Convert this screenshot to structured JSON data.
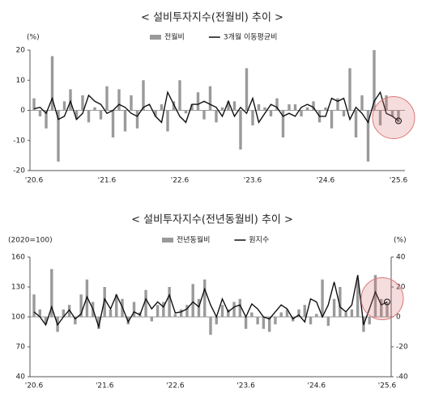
{
  "chart_data": [
    {
      "type": "combo",
      "title": "< 설비투자지수(전월비) 추이 >",
      "y_label": "(%)",
      "categories": [
        "'20.6",
        null,
        null,
        null,
        null,
        null,
        null,
        null,
        null,
        null,
        null,
        null,
        "'21.6",
        null,
        null,
        null,
        null,
        null,
        null,
        null,
        null,
        null,
        null,
        null,
        "'22.6",
        null,
        null,
        null,
        null,
        null,
        null,
        null,
        null,
        null,
        null,
        null,
        "'23.6",
        null,
        null,
        null,
        null,
        null,
        null,
        null,
        null,
        null,
        null,
        null,
        "'24.6",
        null,
        null,
        null,
        null,
        null,
        null,
        null,
        null,
        null,
        null,
        null,
        "'25.6"
      ],
      "ylim": [
        -20,
        20
      ],
      "yticks": [
        -20,
        -10,
        0,
        10,
        20
      ],
      "series": [
        {
          "name": "전월비",
          "type": "bar",
          "color": "#9a9a9a",
          "values": [
            4,
            -2,
            -6,
            18,
            -17,
            3,
            7,
            -3,
            5,
            -4,
            1,
            -3,
            8,
            -9,
            7,
            -7,
            5,
            -6,
            10,
            0,
            -2,
            2,
            -7,
            3,
            10,
            -1,
            2,
            6,
            -3,
            8,
            -4,
            1,
            3,
            3,
            -13,
            14,
            -5,
            2,
            1,
            -2,
            4,
            -9,
            2,
            2,
            -2,
            1,
            3,
            -4,
            1,
            -6,
            4,
            -2,
            14,
            -9,
            5,
            -17,
            20,
            -5,
            5,
            -2,
            -4
          ]
        },
        {
          "name": "3개월 이동평균비",
          "type": "line",
          "color": "#111111",
          "values": [
            0.5,
            1,
            -1,
            4,
            -3,
            -2,
            3,
            -3,
            -1,
            5,
            3,
            2,
            -1,
            0,
            2,
            1,
            -1,
            -2,
            1,
            2,
            -2,
            -4,
            6,
            2,
            -2,
            -4,
            2,
            2,
            3,
            2,
            1,
            -2,
            3,
            -2,
            1,
            -1,
            4,
            -4,
            -1,
            2,
            1,
            -2,
            -1,
            -2,
            1,
            2,
            1,
            -2,
            -2,
            4,
            3,
            4,
            -3,
            1,
            -1,
            -4,
            3,
            6,
            -1,
            -2,
            -3.5
          ]
        }
      ]
    },
    {
      "type": "combo",
      "title": "< 설비투자지수(전년동월비) 추이 >",
      "y_label": "(2020=100)",
      "y2_label": "(%)",
      "categories": [
        "'20.6",
        null,
        null,
        null,
        null,
        null,
        null,
        null,
        null,
        null,
        null,
        null,
        "'21.6",
        null,
        null,
        null,
        null,
        null,
        null,
        null,
        null,
        null,
        null,
        null,
        "'22.6",
        null,
        null,
        null,
        null,
        null,
        null,
        null,
        null,
        null,
        null,
        null,
        "'23.6",
        null,
        null,
        null,
        null,
        null,
        null,
        null,
        null,
        null,
        null,
        null,
        "'24.6",
        null,
        null,
        null,
        null,
        null,
        null,
        null,
        null,
        null,
        null,
        null,
        "'25.6"
      ],
      "ylim": [
        40,
        160
      ],
      "yticks": [
        40,
        70,
        100,
        130,
        160
      ],
      "y2lim": [
        -40,
        40
      ],
      "y2ticks": [
        -40,
        -20,
        0,
        20,
        40
      ],
      "series": [
        {
          "name": "전년동월비",
          "type": "bar",
          "axis": "y2",
          "color": "#9a9a9a",
          "values": [
            15,
            5,
            -5,
            32,
            -10,
            5,
            8,
            -5,
            15,
            25,
            10,
            -8,
            20,
            5,
            15,
            12,
            -5,
            10,
            3,
            18,
            -3,
            8,
            10,
            20,
            2,
            5,
            8,
            22,
            12,
            25,
            -12,
            -5,
            8,
            5,
            10,
            12,
            -8,
            3,
            -5,
            -8,
            -10,
            -5,
            3,
            5,
            -3,
            5,
            8,
            -5,
            2,
            25,
            -6,
            12,
            20,
            3,
            5,
            25,
            -10,
            -5,
            28,
            12,
            10
          ]
        },
        {
          "name": "원지수",
          "type": "line",
          "color": "#111111",
          "values": [
            105,
            100,
            92,
            110,
            92,
            100,
            107,
            98,
            103,
            120,
            108,
            90,
            118,
            108,
            122,
            110,
            95,
            105,
            102,
            118,
            108,
            115,
            110,
            122,
            104,
            105,
            108,
            115,
            110,
            128,
            112,
            100,
            118,
            105,
            110,
            112,
            100,
            113,
            108,
            100,
            98,
            105,
            112,
            108,
            98,
            102,
            95,
            118,
            115,
            100,
            112,
            135,
            110,
            105,
            112,
            142,
            92,
            108,
            125,
            112,
            115
          ]
        }
      ]
    }
  ]
}
